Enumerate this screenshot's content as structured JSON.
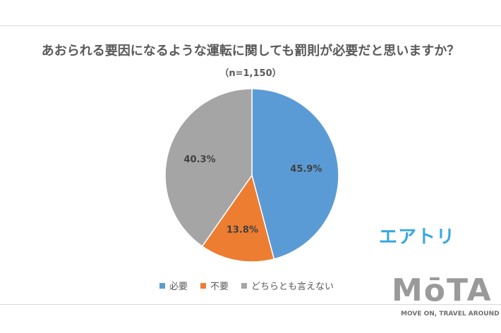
{
  "chart_data": {
    "type": "pie",
    "title": "あおられる要因になるような運転に関しても罰則が必要だと思いますか？",
    "subtitle": "（n=1,150）",
    "categories": [
      "必要",
      "不要",
      "どちらとも言えない"
    ],
    "values": [
      45.9,
      13.8,
      40.3
    ],
    "data_labels": [
      "45.9%",
      "13.8%",
      "40.3%"
    ],
    "colors": [
      "#5b9bd5",
      "#ed7d31",
      "#a5a5a5"
    ],
    "legend_position": "bottom"
  },
  "logos": {
    "survey": "エアトリ",
    "media": "MōTA",
    "media_tagline": "MOVE ON, TRAVEL AROUND"
  }
}
